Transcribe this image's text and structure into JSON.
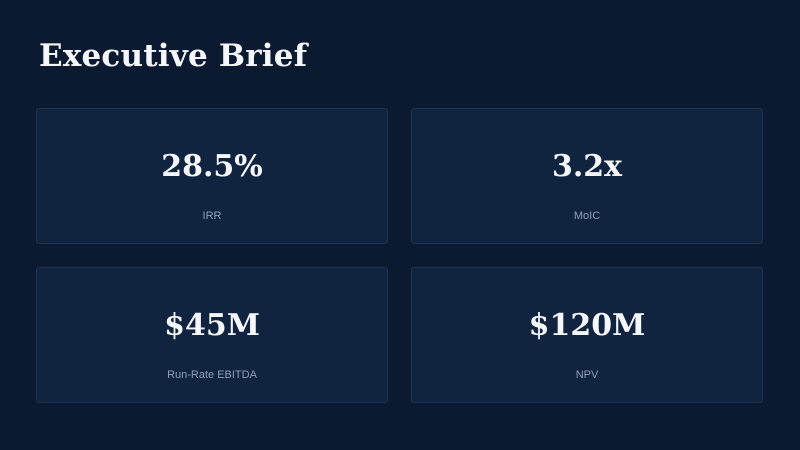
{
  "title": "Executive Brief",
  "metrics": [
    {
      "value": "28.5%",
      "label": "IRR"
    },
    {
      "value": "3.2x",
      "label": "MoIC"
    },
    {
      "value": "$45M",
      "label": "Run-Rate EBITDA"
    },
    {
      "value": "$120M",
      "label": "NPV"
    }
  ],
  "colors": {
    "background": "#0b1a30",
    "card": "#10233f",
    "card_border": "#1d3453",
    "value_text": "#f6f7fb",
    "label_text": "#8fa0b8"
  }
}
